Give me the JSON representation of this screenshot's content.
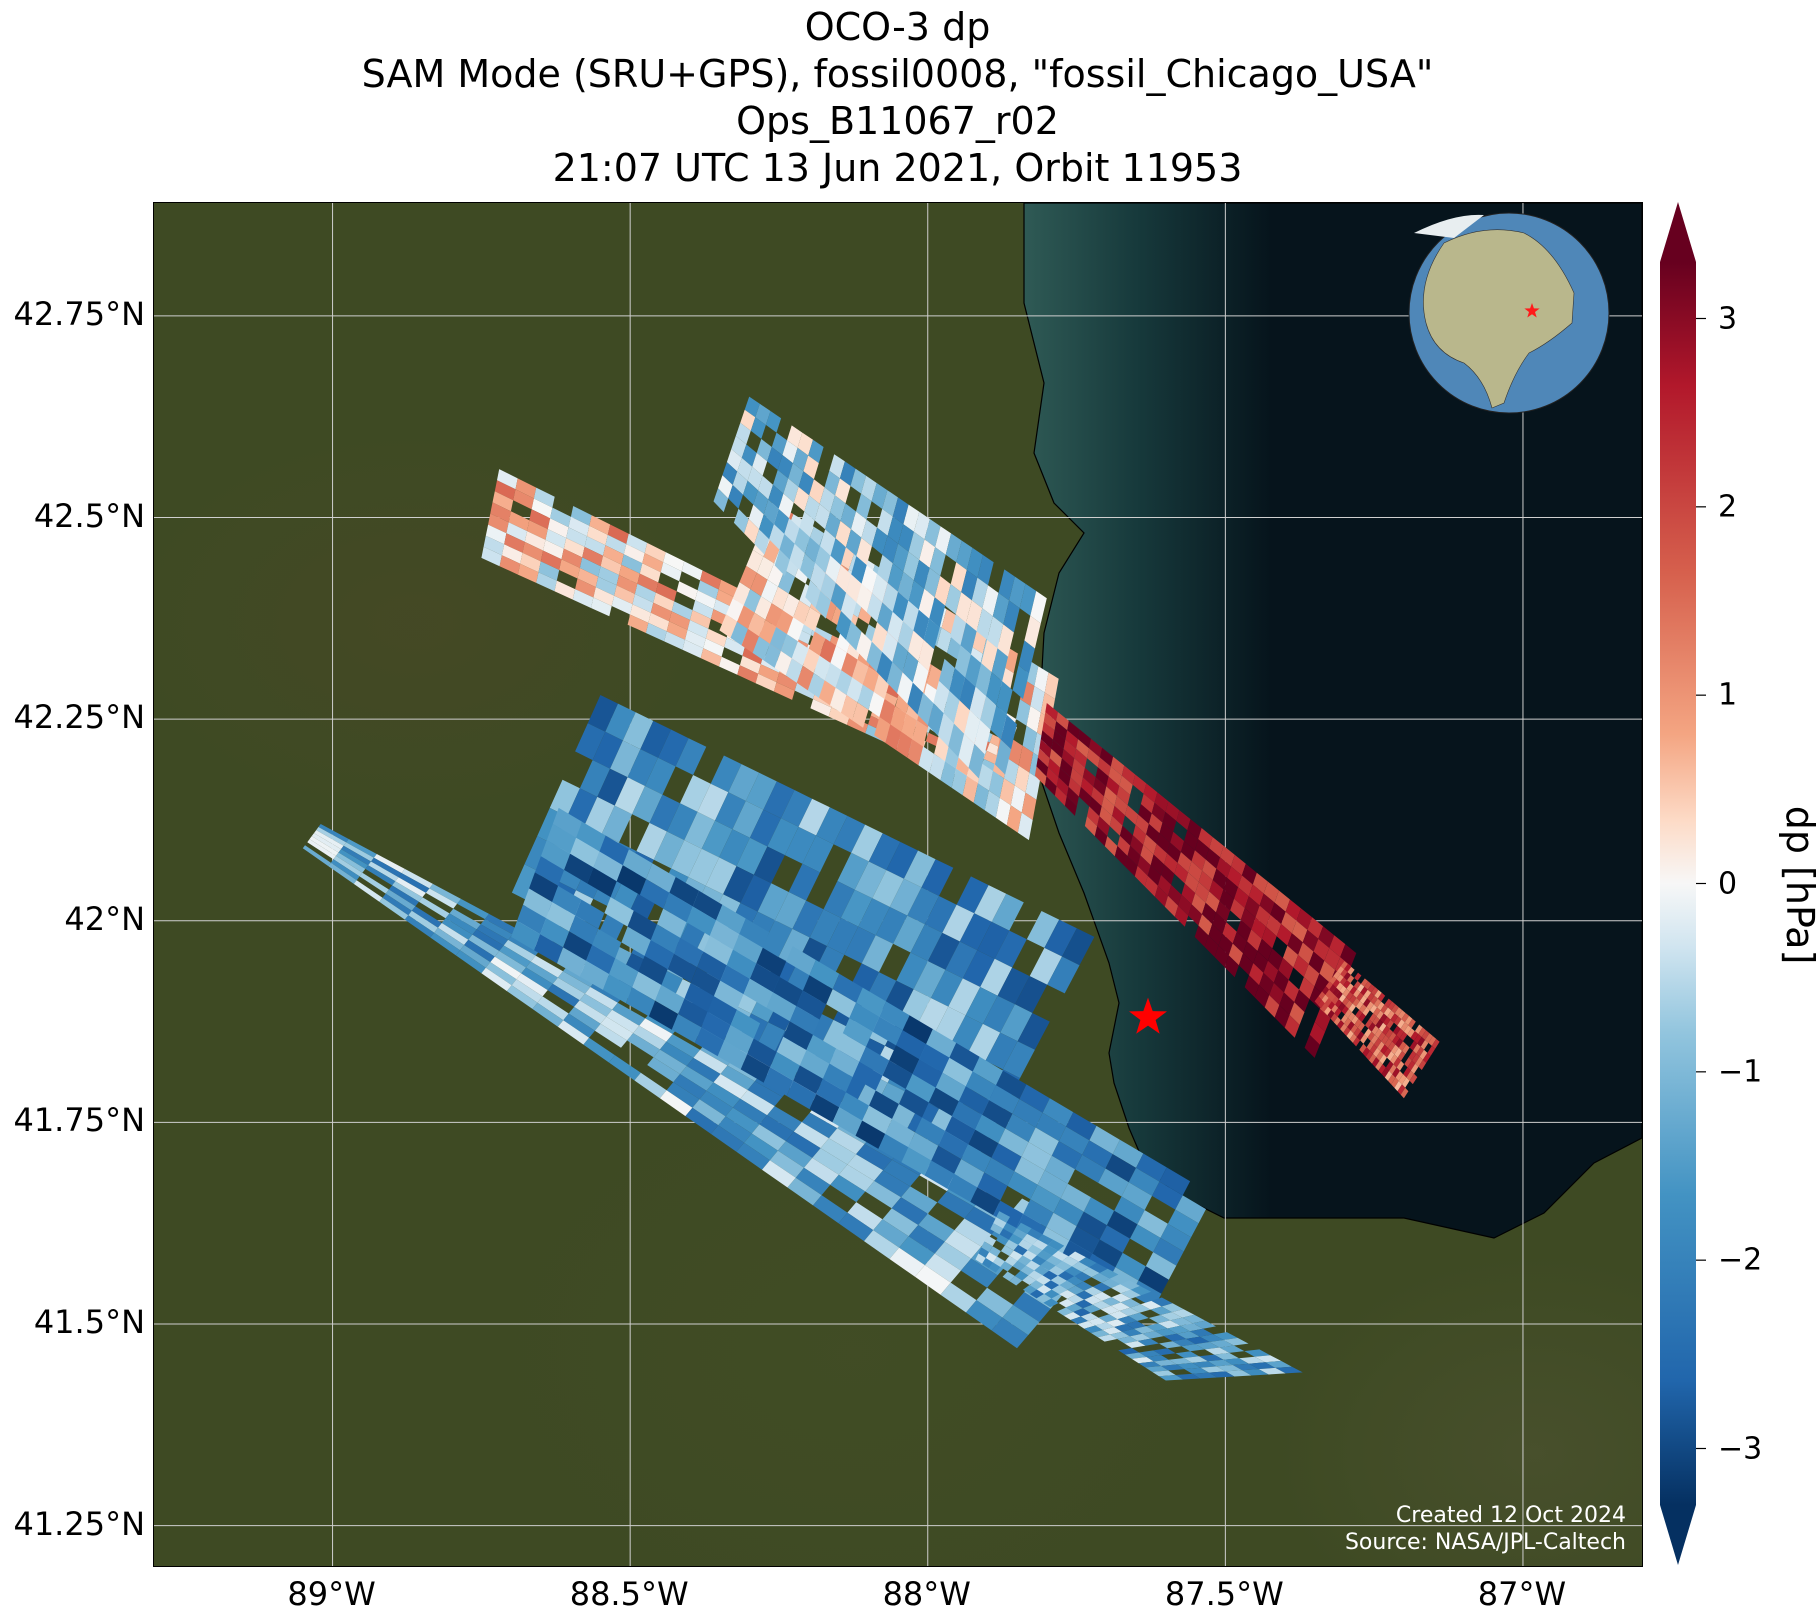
{
  "title": {
    "line1": "OCO-3 dp",
    "line2": "SAM Mode (SRU+GPS), fossil0008, \"fossil_Chicago_USA\"",
    "line3": "Ops_B11067_r02",
    "line4": "21:07 UTC 13 Jun 2021, Orbit 11953"
  },
  "map": {
    "lon_range": [
      -89.3,
      -86.8
    ],
    "lat_range": [
      41.2,
      42.89
    ],
    "lat_ticks": [
      {
        "value": 42.75,
        "label": "42.75°N"
      },
      {
        "value": 42.5,
        "label": "42.5°N"
      },
      {
        "value": 42.25,
        "label": "42.25°N"
      },
      {
        "value": 42.0,
        "label": "42°N"
      },
      {
        "value": 41.75,
        "label": "41.75°N"
      },
      {
        "value": 41.5,
        "label": "41.5°N"
      },
      {
        "value": 41.25,
        "label": "41.25°N"
      }
    ],
    "lon_ticks": [
      {
        "value": -89.0,
        "label": "89°W"
      },
      {
        "value": -88.5,
        "label": "88.5°W"
      },
      {
        "value": -88.0,
        "label": "88°W"
      },
      {
        "value": -87.5,
        "label": "87.5°W"
      },
      {
        "value": -87.0,
        "label": "87°W"
      }
    ],
    "target": {
      "lon": -87.63,
      "lat": 41.88,
      "marker": "red-star"
    },
    "land_color": "#3e4a23",
    "lake_color": "#06141c",
    "lake_shore_color": "#2f5a55",
    "credit_line1": "Created 12 Oct 2024",
    "credit_line2": "Source: NASA/JPL-Caltech"
  },
  "swaths": [
    {
      "name": "swath-1",
      "corners": [
        [
          -88.72,
          42.56
        ],
        [
          -87.85,
          42.24
        ],
        [
          -87.89,
          42.16
        ],
        [
          -88.75,
          42.45
        ]
      ],
      "mean_dp": 0.3
    },
    {
      "name": "swath-2",
      "corners": [
        [
          -88.26,
          42.52
        ],
        [
          -87.78,
          42.3
        ],
        [
          -87.83,
          42.1
        ],
        [
          -88.35,
          42.36
        ]
      ],
      "mean_dp": 0.2
    },
    {
      "name": "swath-3",
      "corners": [
        [
          -88.3,
          42.65
        ],
        [
          -87.8,
          42.4
        ],
        [
          -87.88,
          42.15
        ],
        [
          -88.36,
          42.52
        ]
      ],
      "mean_dp": -0.8
    },
    {
      "name": "swath-4",
      "corners": [
        [
          -88.55,
          42.28
        ],
        [
          -87.72,
          41.98
        ],
        [
          -87.92,
          41.7
        ],
        [
          -88.72,
          42.0
        ]
      ],
      "mean_dp": -1.7
    },
    {
      "name": "swath-5",
      "corners": [
        [
          -89.02,
          42.12
        ],
        [
          -87.7,
          41.6
        ],
        [
          -87.85,
          41.47
        ],
        [
          -89.05,
          42.09
        ]
      ],
      "mean_dp": -1.2
    },
    {
      "name": "swath-6",
      "corners": [
        [
          -88.62,
          42.14
        ],
        [
          -87.52,
          41.66
        ],
        [
          -87.62,
          41.52
        ],
        [
          -88.7,
          41.98
        ]
      ],
      "mean_dp": -2.0
    },
    {
      "name": "swath-7",
      "corners": [
        [
          -87.88,
          41.64
        ],
        [
          -87.37,
          41.44
        ],
        [
          -87.6,
          41.43
        ],
        [
          -87.92,
          41.58
        ]
      ],
      "mean_dp": -1.4
    },
    {
      "name": "swath-8",
      "corners": [
        [
          -87.8,
          42.27
        ],
        [
          -87.28,
          41.96
        ],
        [
          -87.35,
          41.83
        ],
        [
          -87.82,
          42.18
        ]
      ],
      "mean_dp": 2.8
    },
    {
      "name": "swath-9",
      "corners": [
        [
          -87.3,
          41.95
        ],
        [
          -87.14,
          41.85
        ],
        [
          -87.2,
          41.78
        ],
        [
          -87.35,
          41.9
        ]
      ],
      "mean_dp": 1.8
    }
  ],
  "colorbar": {
    "label": "dp [hPa]",
    "vmin": -3.3,
    "vmax": 3.3,
    "cmap": "RdBu_r",
    "extend": "both",
    "ticks": [
      {
        "value": 3,
        "label": "3"
      },
      {
        "value": 2,
        "label": "2"
      },
      {
        "value": 1,
        "label": "1"
      },
      {
        "value": 0,
        "label": "0"
      },
      {
        "value": -1,
        "label": "−1"
      },
      {
        "value": -2,
        "label": "−2"
      },
      {
        "value": -3,
        "label": "−3"
      }
    ]
  },
  "globe_inset": {
    "description_icon": "globe-north-america-icon",
    "ocean_color": "#4f87b8",
    "land_color": "#b9b78c",
    "marker": "red-star"
  }
}
